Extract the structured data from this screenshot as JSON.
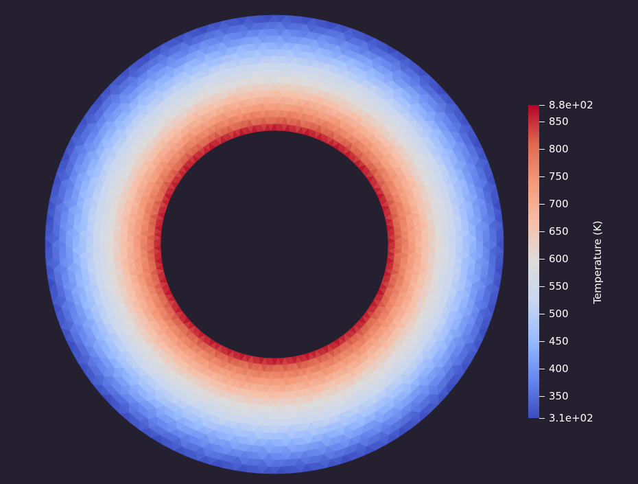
{
  "scene": {
    "background": "#24202f",
    "mesh": "annulus-triangulated",
    "colormap": "coolwarm"
  },
  "colorbar": {
    "title": "Temperature (K)",
    "range": [
      310,
      880
    ],
    "min_label": "3.1e+02",
    "max_label": "8.8e+02",
    "ticks": [
      {
        "value": 880,
        "label": "8.8e+02"
      },
      {
        "value": 850,
        "label": "850"
      },
      {
        "value": 800,
        "label": "800"
      },
      {
        "value": 750,
        "label": "750"
      },
      {
        "value": 700,
        "label": "700"
      },
      {
        "value": 650,
        "label": "650"
      },
      {
        "value": 600,
        "label": "600"
      },
      {
        "value": 550,
        "label": "550"
      },
      {
        "value": 500,
        "label": "500"
      },
      {
        "value": 450,
        "label": "450"
      },
      {
        "value": 400,
        "label": "400"
      },
      {
        "value": 350,
        "label": "350"
      },
      {
        "value": 310,
        "label": "3.1e+02"
      }
    ],
    "colors": [
      "#3b4cc0",
      "#6788ee",
      "#9abbff",
      "#c9d7f0",
      "#dddcdc",
      "#f6c0a8",
      "#f49a7b",
      "#de6a52",
      "#b40426"
    ]
  }
}
